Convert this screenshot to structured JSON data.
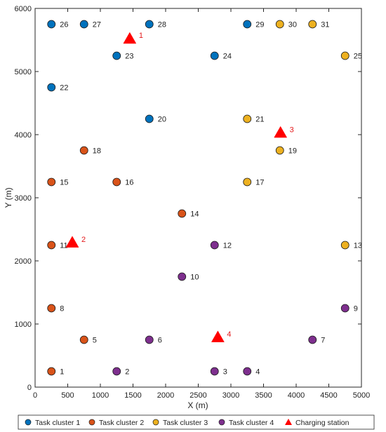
{
  "chart_data": {
    "type": "scatter",
    "xlabel": "X (m)",
    "ylabel": "Y (m)",
    "xlim": [
      0,
      5000
    ],
    "ylim": [
      0,
      6000
    ],
    "xticks": [
      0,
      500,
      1000,
      1500,
      2000,
      2500,
      3000,
      3500,
      4000,
      4500,
      5000
    ],
    "yticks": [
      0,
      1000,
      2000,
      3000,
      4000,
      5000,
      6000
    ],
    "grid": false,
    "legend_position": "bottom",
    "series": [
      {
        "name": "Task cluster 1",
        "marker": "circle",
        "color": "#0072bd",
        "points": [
          {
            "id": "20",
            "x": 1750,
            "y": 4250
          },
          {
            "id": "22",
            "x": 250,
            "y": 4750
          },
          {
            "id": "23",
            "x": 1250,
            "y": 5250
          },
          {
            "id": "24",
            "x": 2750,
            "y": 5250
          },
          {
            "id": "26",
            "x": 250,
            "y": 5750
          },
          {
            "id": "27",
            "x": 750,
            "y": 5750
          },
          {
            "id": "28",
            "x": 1750,
            "y": 5750
          },
          {
            "id": "29",
            "x": 3250,
            "y": 5750
          }
        ]
      },
      {
        "name": "Task cluster 2",
        "marker": "circle",
        "color": "#d95319",
        "points": [
          {
            "id": "1",
            "x": 250,
            "y": 250
          },
          {
            "id": "5",
            "x": 750,
            "y": 750
          },
          {
            "id": "8",
            "x": 250,
            "y": 1250
          },
          {
            "id": "11",
            "x": 250,
            "y": 2250
          },
          {
            "id": "14",
            "x": 2250,
            "y": 2750
          },
          {
            "id": "15",
            "x": 250,
            "y": 3250
          },
          {
            "id": "16",
            "x": 1250,
            "y": 3250
          },
          {
            "id": "18",
            "x": 750,
            "y": 3750
          }
        ]
      },
      {
        "name": "Task cluster 3",
        "marker": "circle",
        "color": "#edb120",
        "points": [
          {
            "id": "13",
            "x": 4750,
            "y": 2250
          },
          {
            "id": "17",
            "x": 3250,
            "y": 3250
          },
          {
            "id": "19",
            "x": 3750,
            "y": 3750
          },
          {
            "id": "21",
            "x": 3250,
            "y": 4250
          },
          {
            "id": "25",
            "x": 4750,
            "y": 5250
          },
          {
            "id": "30",
            "x": 3750,
            "y": 5750
          },
          {
            "id": "31",
            "x": 4250,
            "y": 5750
          }
        ]
      },
      {
        "name": "Task cluster 4",
        "marker": "circle",
        "color": "#7e2f8e",
        "points": [
          {
            "id": "2",
            "x": 1250,
            "y": 250
          },
          {
            "id": "3",
            "x": 2750,
            "y": 250
          },
          {
            "id": "4",
            "x": 3250,
            "y": 250
          },
          {
            "id": "6",
            "x": 1750,
            "y": 750
          },
          {
            "id": "7",
            "x": 4250,
            "y": 750
          },
          {
            "id": "9",
            "x": 4750,
            "y": 1250
          },
          {
            "id": "10",
            "x": 2250,
            "y": 1750
          },
          {
            "id": "12",
            "x": 2750,
            "y": 2250
          }
        ]
      },
      {
        "name": "Charging station",
        "marker": "triangle",
        "color": "#ff0000",
        "label_color": "#e41a1c",
        "points": [
          {
            "id": "1",
            "x": 1450,
            "y": 5520
          },
          {
            "id": "2",
            "x": 570,
            "y": 2290
          },
          {
            "id": "3",
            "x": 3760,
            "y": 4030
          },
          {
            "id": "4",
            "x": 2800,
            "y": 790
          }
        ]
      }
    ]
  }
}
